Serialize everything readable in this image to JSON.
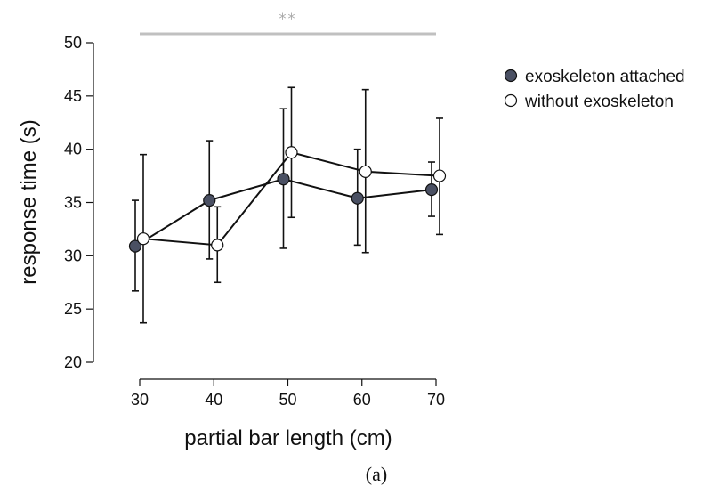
{
  "chart_data": {
    "type": "line",
    "xlabel": "partial bar length (cm)",
    "ylabel": "response time (s)",
    "x": [
      30,
      40,
      50,
      60,
      70
    ],
    "xlim": [
      30,
      70
    ],
    "ylim": [
      20,
      50
    ],
    "x_ticks": [
      30,
      40,
      50,
      60,
      70
    ],
    "y_ticks": [
      20,
      25,
      30,
      35,
      40,
      45,
      50
    ],
    "grid": false,
    "legend_position": "top-right",
    "series": [
      {
        "name": "exoskeleton attached",
        "marker_fill": "#4a5063",
        "values": [
          30.9,
          35.2,
          37.2,
          35.4,
          36.2
        ],
        "err_high": [
          35.2,
          40.8,
          43.8,
          40.0,
          38.8
        ],
        "err_low": [
          26.7,
          29.7,
          30.7,
          31.0,
          33.7
        ]
      },
      {
        "name": "without exoskeleton",
        "marker_fill": "#ffffff",
        "values": [
          31.6,
          31.0,
          39.7,
          37.9,
          37.5
        ],
        "err_high": [
          39.5,
          34.6,
          45.8,
          45.6,
          42.9
        ],
        "err_low": [
          23.7,
          27.5,
          33.6,
          30.3,
          32.0
        ]
      }
    ],
    "significance": {
      "label": "**",
      "from_x": 30,
      "to_x": 70,
      "color": "#c0c0c0"
    },
    "panel_label": "(a)"
  }
}
